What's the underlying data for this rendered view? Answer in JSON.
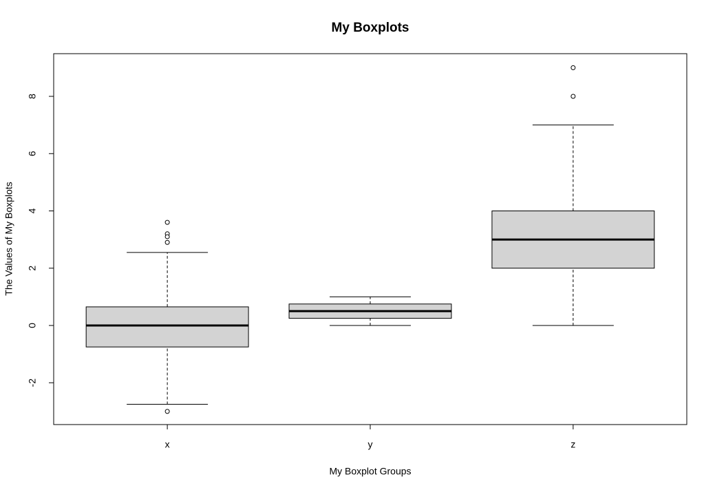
{
  "chart_data": {
    "type": "box",
    "title": "My Boxplots",
    "x_label": "My Boxplot Groups",
    "y_label": "The Values of My Boxplots",
    "categories": [
      "x",
      "y",
      "z"
    ],
    "color": "#d3d3d3",
    "boxes": [
      {
        "whisker_low": -2.75,
        "q1": -0.75,
        "median": 0,
        "q3": 0.65,
        "whisker_high": 2.55,
        "outliers": [
          3.6,
          3.2,
          3.1,
          2.9,
          -3.0
        ]
      },
      {
        "whisker_low": 0,
        "q1": 0.25,
        "median": 0.5,
        "q3": 0.75,
        "whisker_high": 1.0,
        "outliers": []
      },
      {
        "whisker_low": 0,
        "q1": 2,
        "median": 3,
        "q3": 4,
        "whisker_high": 7,
        "outliers": [
          8,
          9
        ]
      }
    ],
    "ylim": [
      -3.46,
      9.49
    ],
    "yticks": [
      -2,
      0,
      2,
      4,
      6,
      8
    ]
  }
}
